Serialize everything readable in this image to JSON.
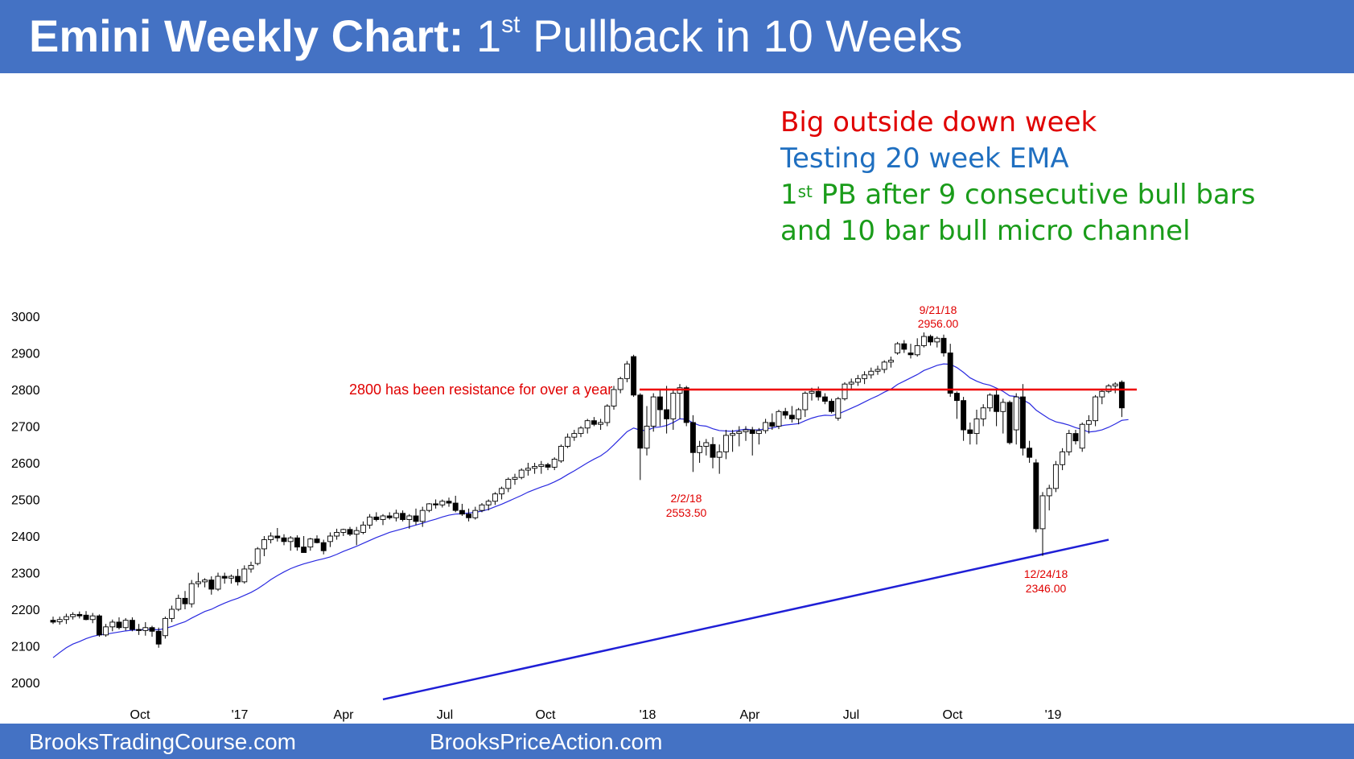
{
  "header": {
    "title_bold": "Emini Weekly Chart:",
    "title_pre": "1",
    "title_sup": "st",
    "title_post": "Pullback in 10 Weeks"
  },
  "annotations": {
    "line1": "Big outside down week",
    "line2": "Testing 20 week EMA",
    "line3_pre": "1",
    "line3_sup": "st",
    "line3_post": "PB after 9 consecutive bull bars",
    "line4": "and 10 bar bull micro channel",
    "colors": {
      "red": "#e00000",
      "blue": "#1f6fc0",
      "green": "#1a9c1a"
    }
  },
  "footer": {
    "left": "BrooksTradingCourse.com",
    "right": "BrooksPriceAction.com"
  },
  "chart_data": {
    "type": "candlestick",
    "title": "",
    "ylim": [
      1950,
      3040
    ],
    "yticks": [
      2000,
      2100,
      2200,
      2300,
      2400,
      2500,
      2600,
      2700,
      2800,
      2900,
      3000
    ],
    "x_ticks": [
      "Oct",
      "'17",
      "Apr",
      "Jul",
      "Oct",
      "'18",
      "Apr",
      "Jul",
      "Oct",
      "'19"
    ],
    "grid": false,
    "candles": [
      [
        2170,
        2180,
        2160,
        2165
      ],
      [
        2166,
        2180,
        2158,
        2172
      ],
      [
        2172,
        2188,
        2160,
        2180
      ],
      [
        2180,
        2192,
        2172,
        2186
      ],
      [
        2186,
        2194,
        2175,
        2182
      ],
      [
        2184,
        2195,
        2170,
        2172
      ],
      [
        2172,
        2190,
        2162,
        2182
      ],
      [
        2182,
        2186,
        2125,
        2130
      ],
      [
        2130,
        2160,
        2125,
        2152
      ],
      [
        2152,
        2172,
        2140,
        2165
      ],
      [
        2165,
        2178,
        2145,
        2150
      ],
      [
        2150,
        2176,
        2142,
        2170
      ],
      [
        2170,
        2178,
        2140,
        2145
      ],
      [
        2145,
        2160,
        2130,
        2142
      ],
      [
        2142,
        2165,
        2128,
        2150
      ],
      [
        2150,
        2155,
        2125,
        2140
      ],
      [
        2140,
        2150,
        2095,
        2105
      ],
      [
        2128,
        2180,
        2120,
        2175
      ],
      [
        2175,
        2210,
        2165,
        2200
      ],
      [
        2200,
        2240,
        2195,
        2230
      ],
      [
        2230,
        2250,
        2200,
        2215
      ],
      [
        2215,
        2280,
        2205,
        2270
      ],
      [
        2270,
        2300,
        2260,
        2275
      ],
      [
        2275,
        2285,
        2260,
        2280
      ],
      [
        2280,
        2290,
        2240,
        2255
      ],
      [
        2255,
        2300,
        2250,
        2290
      ],
      [
        2290,
        2300,
        2270,
        2285
      ],
      [
        2285,
        2295,
        2270,
        2290
      ],
      [
        2290,
        2310,
        2265,
        2275
      ],
      [
        2275,
        2320,
        2270,
        2310
      ],
      [
        2310,
        2330,
        2300,
        2320
      ],
      [
        2325,
        2370,
        2320,
        2365
      ],
      [
        2365,
        2400,
        2345,
        2390
      ],
      [
        2390,
        2410,
        2380,
        2400
      ],
      [
        2400,
        2422,
        2385,
        2395
      ],
      [
        2395,
        2405,
        2375,
        2385
      ],
      [
        2385,
        2400,
        2360,
        2395
      ],
      [
        2395,
        2402,
        2360,
        2370
      ],
      [
        2370,
        2400,
        2355,
        2355
      ],
      [
        2370,
        2395,
        2360,
        2392
      ],
      [
        2392,
        2402,
        2380,
        2382
      ],
      [
        2382,
        2390,
        2350,
        2360
      ],
      [
        2385,
        2410,
        2370,
        2400
      ],
      [
        2400,
        2420,
        2390,
        2410
      ],
      [
        2410,
        2420,
        2400,
        2418
      ],
      [
        2418,
        2425,
        2400,
        2405
      ],
      [
        2405,
        2425,
        2375,
        2415
      ],
      [
        2410,
        2440,
        2405,
        2430
      ],
      [
        2430,
        2460,
        2420,
        2452
      ],
      [
        2452,
        2465,
        2440,
        2445
      ],
      [
        2445,
        2460,
        2430,
        2455
      ],
      [
        2455,
        2465,
        2445,
        2450
      ],
      [
        2450,
        2472,
        2440,
        2462
      ],
      [
        2462,
        2470,
        2440,
        2445
      ],
      [
        2445,
        2460,
        2420,
        2455
      ],
      [
        2455,
        2475,
        2430,
        2440
      ],
      [
        2440,
        2480,
        2425,
        2470
      ],
      [
        2470,
        2490,
        2465,
        2488
      ],
      [
        2488,
        2500,
        2475,
        2485
      ],
      [
        2485,
        2500,
        2478,
        2495
      ],
      [
        2495,
        2505,
        2480,
        2490
      ],
      [
        2490,
        2510,
        2465,
        2470
      ],
      [
        2470,
        2488,
        2455,
        2460
      ],
      [
        2460,
        2475,
        2440,
        2450
      ],
      [
        2450,
        2480,
        2445,
        2470
      ],
      [
        2470,
        2490,
        2465,
        2485
      ],
      [
        2485,
        2500,
        2470,
        2495
      ],
      [
        2495,
        2520,
        2485,
        2515
      ],
      [
        2515,
        2535,
        2500,
        2530
      ],
      [
        2530,
        2560,
        2520,
        2555
      ],
      [
        2555,
        2570,
        2540,
        2560
      ],
      [
        2560,
        2585,
        2555,
        2580
      ],
      [
        2580,
        2600,
        2565,
        2585
      ],
      [
        2585,
        2600,
        2570,
        2590
      ],
      [
        2590,
        2605,
        2570,
        2595
      ],
      [
        2595,
        2600,
        2580,
        2588
      ],
      [
        2588,
        2615,
        2580,
        2610
      ],
      [
        2605,
        2650,
        2600,
        2645
      ],
      [
        2645,
        2680,
        2640,
        2670
      ],
      [
        2670,
        2690,
        2660,
        2680
      ],
      [
        2680,
        2700,
        2670,
        2695
      ],
      [
        2695,
        2720,
        2680,
        2715
      ],
      [
        2715,
        2725,
        2700,
        2705
      ],
      [
        2705,
        2720,
        2690,
        2710
      ],
      [
        2710,
        2760,
        2700,
        2755
      ],
      [
        2755,
        2810,
        2745,
        2800
      ],
      [
        2800,
        2835,
        2790,
        2830
      ],
      [
        2830,
        2878,
        2820,
        2870
      ],
      [
        2890,
        2895,
        2780,
        2785
      ],
      [
        2785,
        2790,
        2553,
        2640
      ],
      [
        2640,
        2755,
        2620,
        2700
      ],
      [
        2700,
        2790,
        2685,
        2780
      ],
      [
        2780,
        2800,
        2700,
        2745
      ],
      [
        2745,
        2810,
        2680,
        2720
      ],
      [
        2720,
        2800,
        2690,
        2790
      ],
      [
        2790,
        2815,
        2720,
        2805
      ],
      [
        2805,
        2810,
        2700,
        2710
      ],
      [
        2710,
        2730,
        2575,
        2628
      ],
      [
        2628,
        2660,
        2600,
        2645
      ],
      [
        2645,
        2665,
        2620,
        2655
      ],
      [
        2650,
        2670,
        2585,
        2615
      ],
      [
        2615,
        2650,
        2570,
        2630
      ],
      [
        2630,
        2690,
        2610,
        2675
      ],
      [
        2675,
        2690,
        2630,
        2680
      ],
      [
        2680,
        2700,
        2645,
        2685
      ],
      [
        2685,
        2700,
        2660,
        2690
      ],
      [
        2690,
        2698,
        2620,
        2680
      ],
      [
        2680,
        2695,
        2650,
        2688
      ],
      [
        2688,
        2720,
        2680,
        2710
      ],
      [
        2710,
        2735,
        2690,
        2700
      ],
      [
        2700,
        2745,
        2692,
        2740
      ],
      [
        2740,
        2750,
        2720,
        2730
      ],
      [
        2730,
        2755,
        2710,
        2720
      ],
      [
        2720,
        2750,
        2705,
        2745
      ],
      [
        2745,
        2795,
        2725,
        2790
      ],
      [
        2790,
        2805,
        2770,
        2795
      ],
      [
        2795,
        2808,
        2770,
        2780
      ],
      [
        2780,
        2790,
        2760,
        2768
      ],
      [
        2768,
        2775,
        2735,
        2740
      ],
      [
        2722,
        2780,
        2715,
        2775
      ],
      [
        2775,
        2820,
        2770,
        2815
      ],
      [
        2815,
        2830,
        2800,
        2820
      ],
      [
        2820,
        2840,
        2810,
        2830
      ],
      [
        2830,
        2850,
        2815,
        2840
      ],
      [
        2840,
        2860,
        2830,
        2850
      ],
      [
        2850,
        2865,
        2840,
        2855
      ],
      [
        2855,
        2880,
        2845,
        2875
      ],
      [
        2875,
        2890,
        2860,
        2880
      ],
      [
        2900,
        2930,
        2895,
        2925
      ],
      [
        2925,
        2935,
        2900,
        2910
      ],
      [
        2900,
        2925,
        2885,
        2895
      ],
      [
        2895,
        2940,
        2890,
        2920
      ],
      [
        2920,
        2956,
        2915,
        2945
      ],
      [
        2945,
        2950,
        2920,
        2930
      ],
      [
        2930,
        2945,
        2915,
        2940
      ],
      [
        2940,
        2950,
        2890,
        2900
      ],
      [
        2900,
        2925,
        2780,
        2790
      ],
      [
        2790,
        2795,
        2720,
        2770
      ],
      [
        2770,
        2780,
        2660,
        2690
      ],
      [
        2690,
        2710,
        2650,
        2680
      ],
      [
        2680,
        2745,
        2650,
        2720
      ],
      [
        2720,
        2760,
        2700,
        2750
      ],
      [
        2750,
        2790,
        2740,
        2785
      ],
      [
        2785,
        2800,
        2700,
        2740
      ],
      [
        2740,
        2775,
        2680,
        2765
      ],
      [
        2765,
        2770,
        2650,
        2655
      ],
      [
        2690,
        2790,
        2650,
        2780
      ],
      [
        2780,
        2815,
        2620,
        2640
      ],
      [
        2640,
        2660,
        2600,
        2615
      ],
      [
        2600,
        2610,
        2410,
        2420
      ],
      [
        2420,
        2520,
        2346,
        2510
      ],
      [
        2510,
        2540,
        2470,
        2530
      ],
      [
        2530,
        2605,
        2520,
        2595
      ],
      [
        2595,
        2640,
        2580,
        2630
      ],
      [
        2630,
        2690,
        2620,
        2680
      ],
      [
        2680,
        2690,
        2650,
        2660
      ],
      [
        2640,
        2710,
        2630,
        2705
      ],
      [
        2705,
        2730,
        2680,
        2715
      ],
      [
        2715,
        2785,
        2700,
        2780
      ],
      [
        2780,
        2800,
        2760,
        2795
      ],
      [
        2795,
        2815,
        2790,
        2810
      ],
      [
        2810,
        2820,
        2790,
        2815
      ],
      [
        2820,
        2825,
        2725,
        2750
      ]
    ],
    "ema20": [
      2068,
      2082,
      2095,
      2105,
      2112,
      2120,
      2126,
      2130,
      2132,
      2135,
      2138,
      2141,
      2143,
      2144,
      2145,
      2145,
      2144,
      2148,
      2153,
      2160,
      2166,
      2176,
      2185,
      2194,
      2200,
      2209,
      2217,
      2224,
      2230,
      2238,
      2246,
      2256,
      2268,
      2281,
      2292,
      2302,
      2311,
      2318,
      2324,
      2329,
      2334,
      2338,
      2343,
      2350,
      2358,
      2365,
      2372,
      2380,
      2388,
      2396,
      2403,
      2410,
      2415,
      2420,
      2425,
      2430,
      2435,
      2441,
      2446,
      2452,
      2457,
      2460,
      2461,
      2463,
      2465,
      2468,
      2473,
      2480,
      2487,
      2495,
      2503,
      2511,
      2520,
      2527,
      2534,
      2540,
      2548,
      2557,
      2568,
      2578,
      2589,
      2600,
      2610,
      2619,
      2632,
      2649,
      2667,
      2685,
      2695,
      2689,
      2688,
      2696,
      2698,
      2702,
      2710,
      2720,
      2719,
      2709,
      2702,
      2700,
      2693,
      2688,
      2687,
      2686,
      2689,
      2692,
      2690,
      2690,
      2693,
      2695,
      2700,
      2703,
      2705,
      2707,
      2715,
      2722,
      2727,
      2730,
      2729,
      2733,
      2741,
      2749,
      2757,
      2766,
      2775,
      2783,
      2793,
      2801,
      2814,
      2823,
      2832,
      2841,
      2852,
      2859,
      2866,
      2870,
      2869,
      2860,
      2847,
      2832,
      2823,
      2816,
      2812,
      2804,
      2795,
      2783,
      2781,
      2772,
      2762,
      2744,
      2732,
      2720,
      2712,
      2708,
      2703,
      2696,
      2691,
      2684,
      2686,
      2690,
      2697,
      2706,
      2716,
      2718
    ],
    "resistance": {
      "value": 2800,
      "label": "2800 has been resistance for over a year"
    },
    "trendline": {
      "start": {
        "bar": 50,
        "value": 1954
      },
      "end": {
        "bar": 160,
        "value": 2390
      }
    },
    "price_labels": [
      {
        "date": "9/21/18",
        "price": "2956.00",
        "bar": 138
      },
      {
        "date": "2/2/18",
        "price": "2553.50",
        "bar": 89
      },
      {
        "date": "12/24/18",
        "price": "2346.00",
        "bar": 150
      }
    ]
  }
}
